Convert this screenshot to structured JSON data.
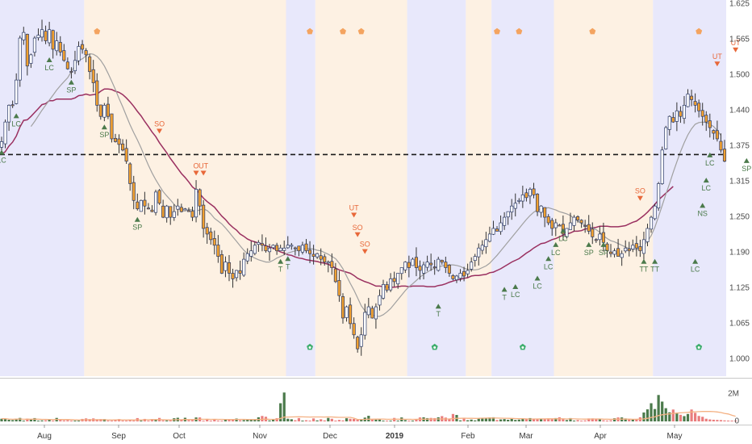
{
  "chart_data": {
    "type": "candlestick",
    "title": "",
    "x_ticks": [
      "Aug",
      "Sep",
      "Oct",
      "Nov",
      "Dec",
      "2019",
      "Feb",
      "Mar",
      "Apr",
      "May"
    ],
    "y_ticks": [
      "1.625",
      "1.565",
      "1.500",
      "1.440",
      "1.375",
      "1.315",
      "1.250",
      "1.190",
      "1.125",
      "1.065",
      "1.000"
    ],
    "y_range": [
      0.985,
      1.625
    ],
    "volume_ticks": [
      "2M",
      "0"
    ],
    "horizontal_level": 1.352,
    "colors": {
      "up": "#ffffff",
      "down": "#f0a030",
      "wick": "#333333",
      "outline": "#2b3a67",
      "ma_fast": "#a0a0a0",
      "ma_slow": "#9a3060",
      "zone_blue": "#e8e8fb",
      "zone_orange": "#fdf1e3",
      "vol_up": "#4b7a4b",
      "vol_down": "#e97d7d",
      "vol_ma": "#f4b183",
      "sig_up": "#4b7a4b",
      "sig_down": "#e8683a",
      "diamond": "#f4a460"
    },
    "zones": [
      {
        "color": "blue",
        "from": 0,
        "to": 23
      },
      {
        "color": "orange",
        "from": 23,
        "to": 78
      },
      {
        "color": "blue",
        "from": 78,
        "to": 86
      },
      {
        "color": "orange",
        "from": 86,
        "to": 111
      },
      {
        "color": "blue",
        "from": 111,
        "to": 127
      },
      {
        "color": "orange",
        "from": 127,
        "to": 134
      },
      {
        "color": "blue",
        "from": 134,
        "to": 151
      },
      {
        "color": "orange",
        "from": 151,
        "to": 178
      },
      {
        "color": "blue",
        "from": 178,
        "to": 199
      },
      {
        "color": "orange",
        "from": 199,
        "to": 201
      }
    ],
    "closes": [
      1.375,
      1.41,
      1.44,
      1.44,
      1.485,
      1.56,
      1.57,
      1.51,
      1.53,
      1.56,
      1.565,
      1.575,
      1.555,
      1.575,
      1.54,
      1.555,
      1.535,
      1.52,
      1.505,
      1.5,
      1.52,
      1.545,
      1.54,
      1.53,
      1.5,
      1.48,
      1.44,
      1.42,
      1.44,
      1.42,
      1.38,
      1.375,
      1.37,
      1.36,
      1.34,
      1.3,
      1.27,
      1.255,
      1.27,
      1.26,
      1.255,
      1.25,
      1.285,
      1.265,
      1.24,
      1.26,
      1.24,
      1.25,
      1.26,
      1.25,
      1.255,
      1.25,
      1.24,
      1.29,
      1.26,
      1.22,
      1.21,
      1.2,
      1.19,
      1.17,
      1.14,
      1.16,
      1.14,
      1.13,
      1.145,
      1.14,
      1.165,
      1.175,
      1.18,
      1.19,
      1.195,
      1.19,
      1.18,
      1.185,
      1.19,
      1.18,
      1.185,
      1.185,
      1.19,
      1.19,
      1.185,
      1.18,
      1.19,
      1.18,
      1.175,
      1.17,
      1.175,
      1.165,
      1.16,
      1.16,
      1.15,
      1.125,
      1.1,
      1.06,
      1.08,
      1.05,
      1.03,
      1.005,
      1.03,
      1.07,
      1.08,
      1.06,
      1.08,
      1.1,
      1.12,
      1.11,
      1.13,
      1.125,
      1.14,
      1.15,
      1.16,
      1.15,
      1.165,
      1.15,
      1.145,
      1.155,
      1.16,
      1.155,
      1.15,
      1.165,
      1.16,
      1.15,
      1.14,
      1.13,
      1.135,
      1.14,
      1.135,
      1.145,
      1.16,
      1.17,
      1.185,
      1.19,
      1.2,
      1.21,
      1.22,
      1.215,
      1.23,
      1.24,
      1.25,
      1.26,
      1.265,
      1.27,
      1.28,
      1.275,
      1.29,
      1.28,
      1.25,
      1.26,
      1.24,
      1.23,
      1.22,
      1.23,
      1.225,
      1.21,
      1.22,
      1.23,
      1.24,
      1.235,
      1.23,
      1.225,
      1.215,
      1.205,
      1.2,
      1.21,
      1.195,
      1.18,
      1.175,
      1.18,
      1.17,
      1.175,
      1.185,
      1.18,
      1.19,
      1.185,
      1.18,
      1.2,
      1.22,
      1.24,
      1.26,
      1.3,
      1.36,
      1.4,
      1.42,
      1.41,
      1.43,
      1.42,
      1.44,
      1.46,
      1.45,
      1.44,
      1.43,
      1.42,
      1.41,
      1.4,
      1.39,
      1.38,
      1.36,
      1.34
    ],
    "ma_fast": {
      "start_index": 8,
      "values": [
        1.402,
        1.411,
        1.421,
        1.431,
        1.44,
        1.449,
        1.458,
        1.467,
        1.475,
        1.482,
        1.489,
        1.5,
        1.512,
        1.52,
        1.523,
        1.528,
        1.532,
        1.531,
        1.527,
        1.52,
        1.51,
        1.497,
        1.483,
        1.468,
        1.452,
        1.437,
        1.421,
        1.405,
        1.391,
        1.378,
        1.364,
        1.348,
        1.333,
        1.319,
        1.307,
        1.296,
        1.286,
        1.278,
        1.271,
        1.263,
        1.256,
        1.252,
        1.251,
        1.254,
        1.253,
        1.251,
        1.253,
        1.255,
        1.252,
        1.246,
        1.238,
        1.233,
        1.228,
        1.221,
        1.213,
        1.205,
        1.197,
        1.189,
        1.181,
        1.175,
        1.17,
        1.167,
        1.164,
        1.162,
        1.16,
        1.16,
        1.163,
        1.167,
        1.17,
        1.173,
        1.176,
        1.178,
        1.18,
        1.182,
        1.183,
        1.184,
        1.184,
        1.183,
        1.181,
        1.18,
        1.177,
        1.174,
        1.17,
        1.166,
        1.158,
        1.148,
        1.135,
        1.122,
        1.11,
        1.096,
        1.082,
        1.073,
        1.068,
        1.066,
        1.063,
        1.063,
        1.066,
        1.071,
        1.077,
        1.085,
        1.093,
        1.101,
        1.109,
        1.116,
        1.121,
        1.127,
        1.133,
        1.138,
        1.142,
        1.146,
        1.149,
        1.151,
        1.153,
        1.154,
        1.155,
        1.155,
        1.154,
        1.152,
        1.149,
        1.147,
        1.146,
        1.146,
        1.147,
        1.15,
        1.153,
        1.158,
        1.165,
        1.172,
        1.18,
        1.188,
        1.196,
        1.204,
        1.212,
        1.22,
        1.228,
        1.236,
        1.243,
        1.249,
        1.253,
        1.255,
        1.256,
        1.257,
        1.255,
        1.253,
        1.25,
        1.248,
        1.246,
        1.243,
        1.238,
        1.233,
        1.229,
        1.226,
        1.223,
        1.221,
        1.218,
        1.213,
        1.207,
        1.202,
        1.198,
        1.196,
        1.193,
        1.19,
        1.187,
        1.184,
        1.183,
        1.182,
        1.185,
        1.19,
        1.197,
        1.207,
        1.222,
        1.241,
        1.261,
        1.281,
        1.3,
        1.32,
        1.339,
        1.357,
        1.373,
        1.387,
        1.398,
        1.406,
        1.409,
        1.41,
        1.409,
        1.406,
        1.402,
        1.395,
        1.386
      ]
    },
    "ma_slow": {
      "start_index": 0,
      "values": [
        1.352,
        1.357,
        1.367,
        1.374,
        1.385,
        1.401,
        1.413,
        1.414,
        1.42,
        1.427,
        1.434,
        1.441,
        1.443,
        1.448,
        1.448,
        1.451,
        1.451,
        1.451,
        1.451,
        1.451,
        1.453,
        1.457,
        1.458,
        1.46,
        1.458,
        1.459,
        1.46,
        1.465,
        1.469,
        1.469,
        1.468,
        1.465,
        1.463,
        1.459,
        1.453,
        1.446,
        1.438,
        1.429,
        1.421,
        1.411,
        1.402,
        1.392,
        1.384,
        1.373,
        1.364,
        1.355,
        1.345,
        1.336,
        1.327,
        1.318,
        1.311,
        1.303,
        1.294,
        1.289,
        1.282,
        1.274,
        1.268,
        1.263,
        1.258,
        1.25,
        1.242,
        1.236,
        1.228,
        1.222,
        1.217,
        1.21,
        1.206,
        1.201,
        1.198,
        1.196,
        1.194,
        1.192,
        1.189,
        1.187,
        1.185,
        1.181,
        1.178,
        1.176,
        1.173,
        1.172,
        1.169,
        1.167,
        1.166,
        1.164,
        1.163,
        1.162,
        1.161,
        1.159,
        1.158,
        1.156,
        1.153,
        1.149,
        1.146,
        1.144,
        1.142,
        1.14,
        1.136,
        1.131,
        1.128,
        1.125,
        1.123,
        1.12,
        1.117,
        1.117,
        1.116,
        1.115,
        1.115,
        1.115,
        1.116,
        1.117,
        1.117,
        1.116,
        1.117,
        1.117,
        1.117,
        1.117,
        1.116,
        1.116,
        1.116,
        1.118,
        1.119,
        1.121,
        1.124,
        1.126,
        1.128,
        1.129,
        1.131,
        1.132,
        1.135,
        1.136,
        1.136,
        1.137,
        1.138,
        1.141,
        1.142,
        1.145,
        1.148,
        1.152,
        1.156,
        1.16,
        1.163,
        1.166,
        1.171,
        1.176,
        1.18,
        1.185,
        1.189,
        1.193,
        1.194,
        1.197,
        1.2,
        1.202,
        1.205,
        1.208,
        1.21,
        1.212,
        1.215,
        1.215,
        1.216,
        1.219,
        1.22,
        1.221,
        1.222,
        1.224,
        1.224,
        1.224,
        1.223,
        1.223,
        1.223,
        1.224,
        1.225,
        1.228,
        1.231,
        1.233,
        1.238,
        1.243,
        1.249,
        1.256,
        1.263,
        1.271,
        1.277,
        1.283,
        1.289,
        1.295
      ]
    },
    "volume": [
      0.16,
      0.17,
      0.1,
      0.08,
      0.17,
      0.21,
      0.01,
      0.17,
      0.12,
      0.2,
      0.04,
      0.06,
      0.07,
      0.1,
      0.02,
      0.21,
      0.09,
      0.06,
      0.07,
      0.02,
      0.01,
      0.01,
      0.15,
      0.18,
      0.14,
      0.18,
      0.13,
      0.14,
      0.14,
      0.04,
      0.03,
      0.09,
      0.14,
      0.05,
      0.02,
      0.12,
      0.02,
      0.2,
      0.04,
      0.15,
      0.04,
      0.14,
      0.13,
      0.21,
      0.06,
      0.06,
      0.07,
      0.19,
      0.22,
      0.12,
      0.22,
      0.07,
      0.08,
      0.24,
      0.24,
      0.03,
      0.11,
      0.03,
      0.12,
      0.05,
      0.01,
      0.12,
      0.12,
      0.12,
      0.17,
      0.07,
      0.08,
      0.1,
      0.14,
      0.11,
      0.25,
      0.33,
      0.28,
      0.06,
      0.12,
      0.19,
      1.1,
      1.75,
      0.16,
      0.13,
      0.07,
      0.2,
      0.03,
      0.07,
      0.05,
      0.18,
      0.06,
      0.13,
      0.06,
      0.21,
      0.16,
      0.05,
      0.09,
      0.06,
      0.19,
      0.16,
      0.15,
      0.12,
      0.13,
      0.23,
      0.34,
      0.15,
      0.11,
      0.13,
      0.02,
      0.03,
      0.02,
      0.21,
      0.05,
      0.24,
      0.08,
      0.02,
      0.05,
      0.12,
      0.24,
      0.25,
      0.2,
      0.21,
      0.2,
      0.25,
      0.32,
      0.23,
      0.14,
      0.45,
      0.39,
      0.06,
      0.17,
      0.07,
      0.11,
      0.06,
      0.17,
      0.2,
      0.17,
      0.24,
      0.25,
      0.08,
      0.12,
      0.14,
      0.1,
      0.17,
      0.09,
      0.11,
      0.17,
      0.16,
      0.2,
      0.17,
      0.16,
      0.14,
      0.14,
      0.18,
      0.14,
      0.2,
      0.25,
      0.17,
      0.08,
      0.2,
      0.03,
      0.08,
      0.04,
      0.06,
      0.18,
      0.18,
      0.15,
      0.14,
      0.07,
      0.05,
      0.07,
      0.19,
      0.24,
      0.24,
      0.18,
      0.12,
      0.1,
      0.15,
      0.25,
      0.54,
      0.73,
      1.1,
      0.75,
      1.6,
      1.2,
      0.8,
      0.55,
      0.72,
      0.48,
      0.4,
      0.32,
      0.45,
      0.72,
      0.52,
      0.33,
      0.28,
      0.16,
      0.12,
      0.1,
      0.09,
      0.08,
      0.06,
      0.05,
      0.04,
      0.03
    ],
    "volume_range": [
      0,
      2.25
    ],
    "signals": [
      {
        "i": 0,
        "text": "LC",
        "dir": "up",
        "price": 1.375
      },
      {
        "i": 4,
        "text": "LC",
        "dir": "up",
        "price": 1.44
      },
      {
        "i": 13,
        "text": "LC",
        "dir": "up",
        "price": 1.54
      },
      {
        "i": 19,
        "text": "SP",
        "dir": "up",
        "price": 1.5
      },
      {
        "i": 28,
        "text": "SP",
        "dir": "up",
        "price": 1.42
      },
      {
        "i": 37,
        "text": "SP",
        "dir": "up",
        "price": 1.255
      },
      {
        "i": 43,
        "text": "SO",
        "dir": "down",
        "price": 1.375
      },
      {
        "i": 53,
        "text": "O",
        "dir": "down",
        "price": 1.3
      },
      {
        "i": 55,
        "text": "UT",
        "dir": "down",
        "price": 1.3
      },
      {
        "i": 76,
        "text": "T",
        "dir": "up",
        "price": 1.18
      },
      {
        "i": 78,
        "text": "T",
        "dir": "up",
        "price": 1.185
      },
      {
        "i": 96,
        "text": "UT",
        "dir": "down",
        "price": 1.225
      },
      {
        "i": 97,
        "text": "SO",
        "dir": "down",
        "price": 1.19
      },
      {
        "i": 99,
        "text": "SO",
        "dir": "down",
        "price": 1.16
      },
      {
        "i": 119,
        "text": "T",
        "dir": "up",
        "price": 1.1
      },
      {
        "i": 137,
        "text": "T",
        "dir": "up",
        "price": 1.13
      },
      {
        "i": 140,
        "text": "LC",
        "dir": "up",
        "price": 1.135
      },
      {
        "i": 146,
        "text": "LC",
        "dir": "up",
        "price": 1.15
      },
      {
        "i": 149,
        "text": "LC",
        "dir": "up",
        "price": 1.185
      },
      {
        "i": 151,
        "text": "LC",
        "dir": "up",
        "price": 1.21
      },
      {
        "i": 153,
        "text": "LC",
        "dir": "up",
        "price": 1.235
      },
      {
        "i": 160,
        "text": "SP",
        "dir": "up",
        "price": 1.21
      },
      {
        "i": 164,
        "text": "SP",
        "dir": "up",
        "price": 1.21
      },
      {
        "i": 174,
        "text": "SO",
        "dir": "down",
        "price": 1.255
      },
      {
        "i": 175,
        "text": "TT",
        "dir": "up",
        "price": 1.18
      },
      {
        "i": 178,
        "text": "TT",
        "dir": "up",
        "price": 1.18
      },
      {
        "i": 189,
        "text": "LC",
        "dir": "up",
        "price": 1.18
      },
      {
        "i": 191,
        "text": "NS",
        "dir": "up",
        "price": 1.28
      },
      {
        "i": 192,
        "text": "LC",
        "dir": "up",
        "price": 1.325
      },
      {
        "i": 193,
        "text": "LC",
        "dir": "up",
        "price": 1.37
      },
      {
        "i": 195,
        "text": "UT",
        "dir": "down",
        "price": 1.495
      },
      {
        "i": 200,
        "text": "UT",
        "dir": "down",
        "price": 1.52
      },
      {
        "i": 203,
        "text": "SP",
        "dir": "up",
        "price": 1.36
      },
      {
        "i": 209,
        "text": "SP",
        "dir": "up",
        "price": 1.3
      }
    ],
    "diamonds_top": [
      26,
      84,
      93,
      98,
      135,
      141,
      161,
      190,
      212
    ],
    "diamonds_bottom": [
      84,
      118,
      142,
      190
    ]
  }
}
